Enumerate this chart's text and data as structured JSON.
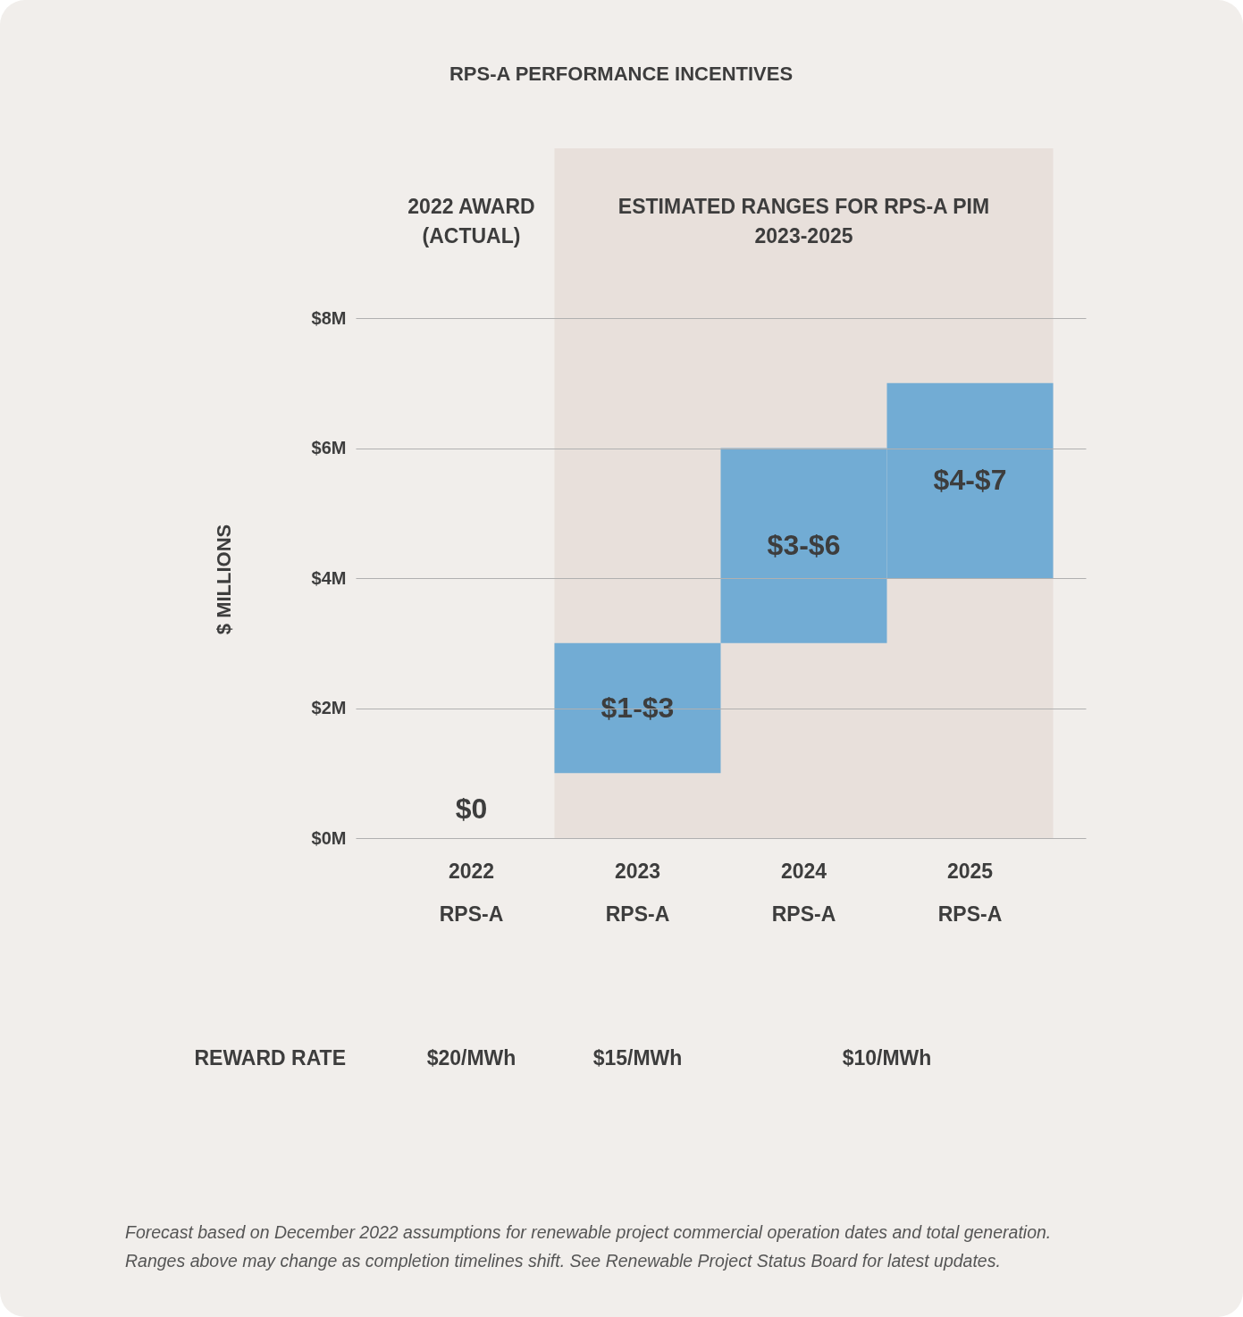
{
  "chart_data": {
    "type": "bar",
    "title": "RPS-A PERFORMANCE INCENTIVES",
    "ylabel": "$ MILLIONS",
    "categories": [
      "2022\nRPS-A",
      "2023\nRPS-A",
      "2024\nRPS-A",
      "2025\nRPS-A"
    ],
    "base": [
      null,
      1,
      3,
      4
    ],
    "values": [
      0,
      2,
      3,
      3
    ],
    "color": "#72acd4",
    "value_labels": [
      "$0",
      "$1-$3",
      "$3-$6",
      "$4-$7"
    ],
    "ylim": [
      0,
      8
    ],
    "yticks": [
      {
        "value": 0,
        "label": "$0M"
      },
      {
        "value": 2,
        "label": "$2M"
      },
      {
        "value": 4,
        "label": "$4M"
      },
      {
        "value": 6,
        "label": "$6M"
      },
      {
        "value": 8,
        "label": "$8M"
      }
    ],
    "grid": "y",
    "bands": [
      {
        "axis": "x",
        "from": "2023\nRPS-A",
        "to": "2025\nRPS-A",
        "label": "ESTIMATED RANGES FOR RPS-A PIM\n2023-2025",
        "color": "#e8e0db"
      }
    ],
    "annotations": [
      "2022 AWARD\n(ACTUAL)",
      "REWARD RATE",
      "$20/MWh",
      "$15/MWh",
      "$10/MWh",
      "Forecast based on December 2022 assumptions for renewable project commercial operation dates and total generation.",
      "Ranges above may change as completion timelines shift. See Renewable Project Status Board for latest updates."
    ]
  }
}
